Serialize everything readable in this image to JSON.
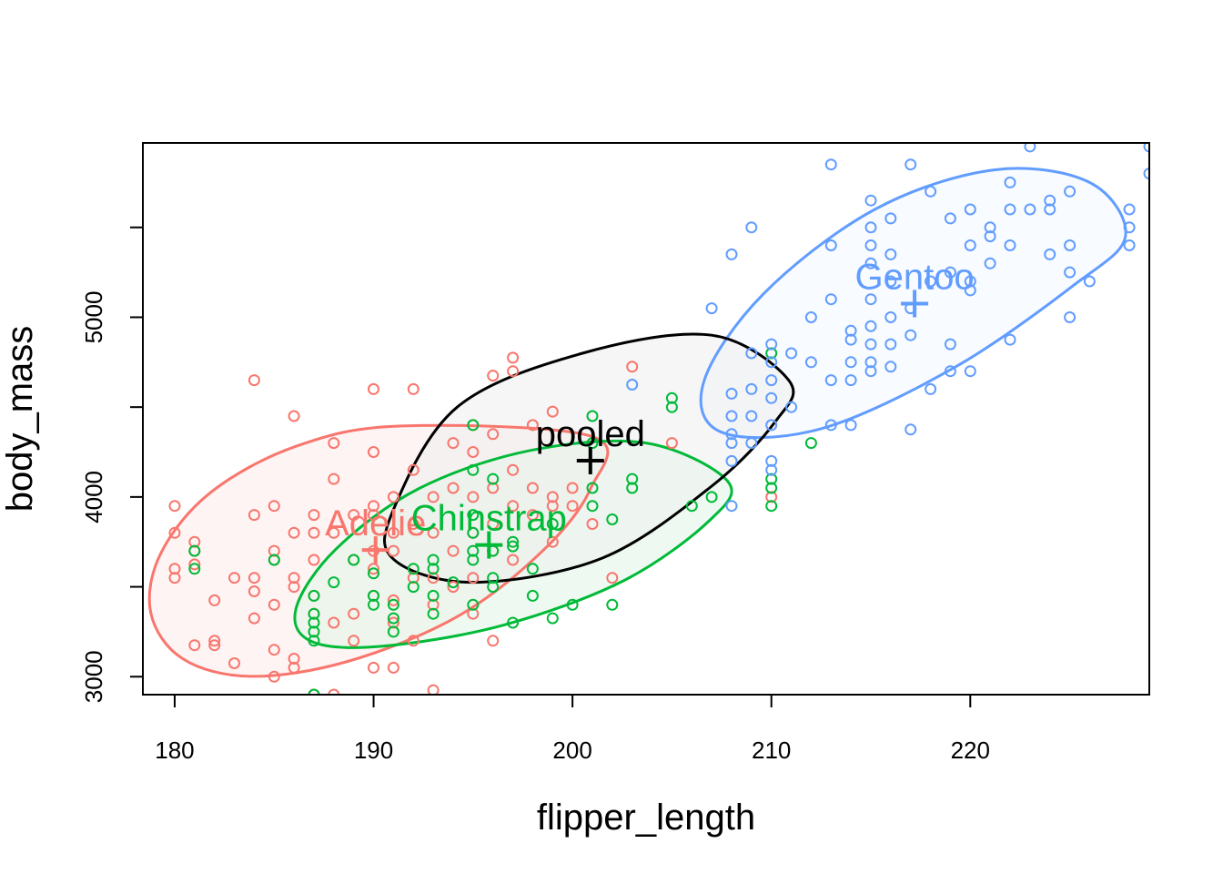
{
  "chart_data": {
    "type": "scatter",
    "title": "",
    "xlabel": "flipper_length",
    "ylabel": "body_mass",
    "xlim": [
      178.4,
      229
    ],
    "ylim": [
      2900,
      5970
    ],
    "x_ticks": [
      {
        "value": 180,
        "label": "180"
      },
      {
        "value": 190,
        "label": "190"
      },
      {
        "value": 200,
        "label": "200"
      },
      {
        "value": 210,
        "label": "210"
      },
      {
        "value": 220,
        "label": "220"
      }
    ],
    "y_ticks": [
      {
        "value": 3000,
        "label": "3000"
      },
      {
        "value": 3500,
        "label": ""
      },
      {
        "value": 4000,
        "label": "4000"
      },
      {
        "value": 4500,
        "label": ""
      },
      {
        "value": 5000,
        "label": "5000"
      },
      {
        "value": 5500,
        "label": ""
      }
    ],
    "grid": false,
    "legend": "none",
    "groups": [
      {
        "label": "Adelie",
        "color": "#F8766D",
        "fill": "#FEEBEA",
        "center": [
          190.1,
          3705
        ],
        "ellipse": [
          [
            191.4,
            4395
          ],
          [
            186.1,
            4282
          ],
          [
            181.8,
            4024
          ],
          [
            179.3,
            3686
          ],
          [
            178.8,
            3355
          ],
          [
            180.4,
            3100
          ],
          [
            183.8,
            3002
          ],
          [
            188.7,
            3085
          ],
          [
            194.2,
            3334
          ],
          [
            198.5,
            3700
          ],
          [
            200.9,
            4045
          ],
          [
            201.0,
            4336
          ]
        ],
        "points": [
          [
            180,
            3950
          ],
          [
            180,
            3800
          ],
          [
            180,
            3600
          ],
          [
            180,
            3550
          ],
          [
            181,
            3750
          ],
          [
            181,
            3700
          ],
          [
            181,
            3625
          ],
          [
            181,
            3175
          ],
          [
            182,
            3425
          ],
          [
            182,
            3200
          ],
          [
            182,
            3175
          ],
          [
            183,
            3550
          ],
          [
            183,
            3075
          ],
          [
            184,
            4650
          ],
          [
            184,
            3900
          ],
          [
            184,
            3550
          ],
          [
            184,
            3475
          ],
          [
            184,
            3325
          ],
          [
            185,
            3950
          ],
          [
            185,
            3700
          ],
          [
            185,
            3650
          ],
          [
            185,
            3400
          ],
          [
            185,
            3150
          ],
          [
            185,
            3000
          ],
          [
            186,
            4450
          ],
          [
            186,
            3800
          ],
          [
            186,
            3550
          ],
          [
            186,
            3500
          ],
          [
            186,
            3100
          ],
          [
            186,
            3050
          ],
          [
            187,
            3900
          ],
          [
            187,
            3800
          ],
          [
            187,
            3650
          ],
          [
            187,
            3450
          ],
          [
            187,
            3350
          ],
          [
            187,
            2900
          ],
          [
            188,
            4300
          ],
          [
            188,
            4100
          ],
          [
            188,
            3800
          ],
          [
            188,
            3300
          ],
          [
            188,
            2900
          ],
          [
            189,
            3900
          ],
          [
            189,
            3650
          ],
          [
            189,
            3350
          ],
          [
            189,
            3200
          ],
          [
            190,
            4600
          ],
          [
            190,
            4250
          ],
          [
            190,
            3950
          ],
          [
            190,
            3900
          ],
          [
            190,
            3700
          ],
          [
            190,
            3600
          ],
          [
            190,
            3450
          ],
          [
            190,
            3050
          ],
          [
            191,
            4000
          ],
          [
            191,
            3800
          ],
          [
            191,
            3700
          ],
          [
            191,
            3425
          ],
          [
            191,
            3300
          ],
          [
            191,
            3050
          ],
          [
            192,
            4600
          ],
          [
            192,
            4150
          ],
          [
            192,
            3850
          ],
          [
            192,
            3550
          ],
          [
            192,
            3200
          ],
          [
            193,
            4000
          ],
          [
            193,
            3800
          ],
          [
            193,
            3550
          ],
          [
            193,
            3400
          ],
          [
            193,
            2925
          ],
          [
            194,
            4300
          ],
          [
            194,
            4050
          ],
          [
            194,
            3700
          ],
          [
            194,
            3500
          ],
          [
            195,
            4400
          ],
          [
            195,
            4250
          ],
          [
            195,
            4000
          ],
          [
            195,
            3800
          ],
          [
            195,
            3550
          ],
          [
            195,
            3350
          ],
          [
            196,
            4675
          ],
          [
            196,
            4350
          ],
          [
            196,
            4050
          ],
          [
            196,
            3850
          ],
          [
            196,
            3700
          ],
          [
            196,
            3200
          ],
          [
            197,
            4700
          ],
          [
            197,
            4150
          ],
          [
            197,
            3950
          ],
          [
            197,
            3650
          ],
          [
            198,
            4400
          ],
          [
            198,
            4050
          ],
          [
            198,
            3900
          ],
          [
            199,
            4000
          ],
          [
            199,
            3950
          ],
          [
            199,
            3750
          ],
          [
            200,
            4050
          ],
          [
            200,
            3950
          ],
          [
            201,
            3850
          ],
          [
            202,
            3550
          ],
          [
            203,
            4725
          ],
          [
            205,
            4300
          ],
          [
            210,
            4000
          ],
          [
            197,
            4775
          ],
          [
            199,
            4475
          ]
        ]
      },
      {
        "label": "Chinstrap",
        "color": "#00BA38",
        "fill": "#E0F6E6",
        "center": [
          195.8,
          3733
        ],
        "ellipse": [
          [
            203.7,
            4300
          ],
          [
            197.9,
            4259
          ],
          [
            192.3,
            4048
          ],
          [
            188.1,
            3709
          ],
          [
            186.1,
            3379
          ],
          [
            186.9,
            3195
          ],
          [
            190.4,
            3169
          ],
          [
            196.5,
            3286
          ],
          [
            202.6,
            3536
          ],
          [
            206.9,
            3870
          ],
          [
            207.8,
            4088
          ]
        ],
        "points": [
          [
            181,
            3700
          ],
          [
            181,
            3600
          ],
          [
            185,
            3650
          ],
          [
            187,
            3450
          ],
          [
            187,
            3350
          ],
          [
            187,
            3300
          ],
          [
            187,
            3250
          ],
          [
            187,
            3200
          ],
          [
            187,
            2900
          ],
          [
            188,
            3525
          ],
          [
            189,
            3650
          ],
          [
            190,
            3575
          ],
          [
            190,
            3400
          ],
          [
            190,
            3450
          ],
          [
            191,
            3400
          ],
          [
            191,
            3325
          ],
          [
            191,
            3250
          ],
          [
            192,
            3600
          ],
          [
            192,
            3500
          ],
          [
            193,
            3650
          ],
          [
            193,
            3600
          ],
          [
            193,
            3450
          ],
          [
            193,
            3350
          ],
          [
            194,
            3525
          ],
          [
            195,
            4400
          ],
          [
            195,
            4150
          ],
          [
            195,
            3900
          ],
          [
            195,
            3800
          ],
          [
            195,
            3700
          ],
          [
            195,
            3650
          ],
          [
            195,
            3400
          ],
          [
            196,
            4100
          ],
          [
            196,
            3700
          ],
          [
            196,
            3550
          ],
          [
            196,
            3500
          ],
          [
            197,
            3750
          ],
          [
            197,
            3725
          ],
          [
            197,
            3300
          ],
          [
            198,
            3600
          ],
          [
            198,
            3450
          ],
          [
            199,
            3325
          ],
          [
            199,
            3850
          ],
          [
            200,
            3400
          ],
          [
            201,
            4450
          ],
          [
            201,
            4050
          ],
          [
            201,
            3950
          ],
          [
            201,
            4300
          ],
          [
            202,
            3875
          ],
          [
            202,
            3400
          ],
          [
            203,
            4100
          ],
          [
            203,
            4050
          ],
          [
            205,
            4550
          ],
          [
            205,
            4500
          ],
          [
            206,
            3950
          ],
          [
            207,
            4000
          ],
          [
            210,
            4800
          ],
          [
            210,
            4100
          ],
          [
            210,
            4050
          ],
          [
            210,
            3950
          ],
          [
            212,
            4300
          ]
        ]
      },
      {
        "label": "Gentoo",
        "color": "#619CFF",
        "fill": "#F2F7FF",
        "center": [
          217.2,
          5076
        ],
        "ellipse": [
          [
            227.8,
            5450
          ],
          [
            226.0,
            5750
          ],
          [
            221.2,
            5820
          ],
          [
            215.2,
            5600
          ],
          [
            209.6,
            5130
          ],
          [
            206.6,
            4640
          ],
          [
            207.5,
            4360
          ],
          [
            212.5,
            4380
          ],
          [
            219.2,
            4720
          ],
          [
            225.1,
            5170
          ]
        ],
        "points": [
          [
            203,
            4625
          ],
          [
            207,
            5050
          ],
          [
            208,
            5350
          ],
          [
            208,
            4575
          ],
          [
            208,
            4450
          ],
          [
            208,
            4350
          ],
          [
            208,
            4300
          ],
          [
            208,
            4200
          ],
          [
            208,
            3950
          ],
          [
            209,
            5500
          ],
          [
            209,
            4800
          ],
          [
            209,
            4600
          ],
          [
            209,
            4450
          ],
          [
            209,
            4300
          ],
          [
            210,
            4850
          ],
          [
            210,
            4750
          ],
          [
            210,
            4650
          ],
          [
            210,
            4550
          ],
          [
            210,
            4400
          ],
          [
            210,
            4200
          ],
          [
            210,
            4150
          ],
          [
            211,
            4800
          ],
          [
            211,
            4500
          ],
          [
            212,
            4750
          ],
          [
            212,
            5000
          ],
          [
            213,
            5850
          ],
          [
            213,
            5400
          ],
          [
            213,
            5100
          ],
          [
            213,
            4650
          ],
          [
            213,
            4400
          ],
          [
            214,
            4925
          ],
          [
            214,
            4875
          ],
          [
            214,
            4750
          ],
          [
            214,
            4650
          ],
          [
            214,
            4400
          ],
          [
            215,
            5650
          ],
          [
            215,
            5500
          ],
          [
            215,
            5400
          ],
          [
            215,
            5300
          ],
          [
            215,
            5100
          ],
          [
            215,
            4950
          ],
          [
            215,
            4850
          ],
          [
            215,
            4750
          ],
          [
            215,
            4700
          ],
          [
            216,
            5550
          ],
          [
            216,
            5350
          ],
          [
            216,
            5200
          ],
          [
            216,
            5000
          ],
          [
            216,
            4850
          ],
          [
            216,
            4725
          ],
          [
            217,
            5850
          ],
          [
            217,
            5050
          ],
          [
            217,
            4900
          ],
          [
            217,
            4375
          ],
          [
            218,
            5700
          ],
          [
            218,
            5200
          ],
          [
            218,
            4600
          ],
          [
            219,
            5550
          ],
          [
            219,
            5250
          ],
          [
            219,
            4850
          ],
          [
            219,
            4700
          ],
          [
            220,
            5600
          ],
          [
            220,
            5400
          ],
          [
            220,
            5200
          ],
          [
            220,
            5150
          ],
          [
            220,
            4700
          ],
          [
            221,
            5450
          ],
          [
            221,
            5500
          ],
          [
            221,
            5300
          ],
          [
            222,
            5750
          ],
          [
            222,
            5600
          ],
          [
            222,
            5400
          ],
          [
            222,
            4875
          ],
          [
            223,
            5950
          ],
          [
            223,
            5600
          ],
          [
            224,
            5650
          ],
          [
            224,
            5600
          ],
          [
            224,
            5350
          ],
          [
            225,
            5700
          ],
          [
            225,
            5400
          ],
          [
            225,
            5250
          ],
          [
            225,
            5000
          ],
          [
            226,
            5200
          ],
          [
            228,
            5600
          ],
          [
            228,
            5500
          ],
          [
            228,
            5400
          ],
          [
            229,
            5950
          ],
          [
            229,
            5800
          ]
        ]
      },
      {
        "label": "pooled",
        "color": "#000000",
        "fill": "#EFEFEF",
        "center": [
          200.9,
          4202
        ],
        "ellipse": [
          [
            210.9,
            4645
          ],
          [
            207.0,
            4900
          ],
          [
            200.5,
            4800
          ],
          [
            194.2,
            4500
          ],
          [
            191.0,
            3930
          ],
          [
            191.0,
            3654
          ],
          [
            195.0,
            3525
          ],
          [
            201.5,
            3660
          ],
          [
            207.0,
            4060
          ],
          [
            210.2,
            4420
          ]
        ],
        "points": []
      }
    ]
  }
}
